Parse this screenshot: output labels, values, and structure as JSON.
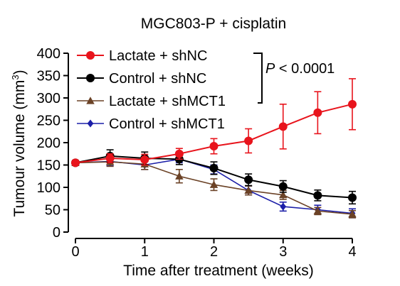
{
  "chart_data": {
    "type": "line",
    "title": "MGC803-P + cisplatin",
    "xlabel": "Time after treatment (weeks)",
    "ylabel": "Tumour volume (mm",
    "ylabel_sup": "3",
    "ylabel_close": ")",
    "xlim": [
      0,
      4
    ],
    "ylim": [
      0,
      400
    ],
    "xticks": [
      0,
      1,
      2,
      3,
      4
    ],
    "yticks": [
      0,
      50,
      100,
      150,
      200,
      250,
      300,
      350,
      400
    ],
    "grid": false,
    "legend_position": "top-left",
    "annotation": {
      "p_label": "P",
      "p_text": " < 0.0001"
    },
    "x": [
      0,
      0.5,
      1,
      1.5,
      2,
      2.5,
      3,
      3.5,
      4
    ],
    "series": [
      {
        "name": "Lactate + shNC",
        "color": "#e8141c",
        "marker": "circle",
        "line_width": 2.0,
        "values": [
          155,
          165,
          162,
          175,
          192,
          204,
          236,
          267,
          286
        ],
        "errors": [
          5,
          10,
          12,
          12,
          17,
          27,
          50,
          47,
          57
        ]
      },
      {
        "name": "Control + shNC",
        "color": "#000000",
        "marker": "circle",
        "line_width": 2.0,
        "values": [
          155,
          170,
          165,
          163,
          143,
          117,
          102,
          82,
          77
        ],
        "errors": [
          5,
          14,
          14,
          12,
          14,
          13,
          13,
          12,
          14
        ]
      },
      {
        "name": "Lactate + shMCT1",
        "color": "#6b4226",
        "marker": "triangle",
        "line_width": 1.6,
        "values": [
          155,
          157,
          152,
          125,
          106,
          93,
          83,
          47,
          40
        ],
        "errors": [
          5,
          10,
          12,
          15,
          13,
          10,
          10,
          8,
          8
        ]
      },
      {
        "name": "Control + shMCT1",
        "color": "#1c1fa8",
        "marker": "diamond",
        "line_width": 1.6,
        "values": [
          155,
          158,
          150,
          163,
          140,
          93,
          57,
          50,
          42
        ],
        "errors": [
          5,
          10,
          10,
          8,
          10,
          10,
          10,
          10,
          10
        ]
      }
    ]
  }
}
